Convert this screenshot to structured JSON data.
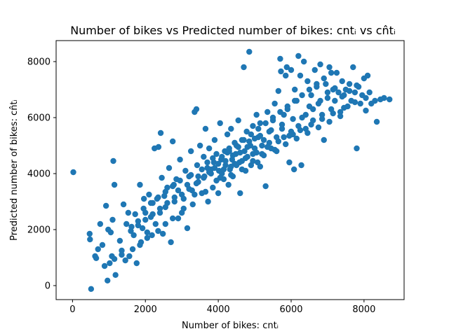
{
  "chart_data": {
    "type": "scatter",
    "title": "Number of bikes vs Predicted number of bikes: cntᵢ vs cn̂tᵢ",
    "xlabel": "Number of bikes: cntᵢ",
    "ylabel": "Predicted number of bikes: cn̂tᵢ",
    "xlim": [
      -450,
      9100
    ],
    "ylim": [
      -500,
      8750
    ],
    "xticks": [
      0,
      2000,
      4000,
      6000,
      8000
    ],
    "yticks": [
      0,
      2000,
      4000,
      6000,
      8000
    ],
    "xtick_labels": [
      "0",
      "2000",
      "4000",
      "6000",
      "8000"
    ],
    "ytick_labels": [
      "0",
      "2000",
      "4000",
      "6000",
      "8000"
    ],
    "grid": false,
    "marker_color": "#1f77b4",
    "series": [
      {
        "points": [
          [
            22,
            4050
          ],
          [
            510,
            -120
          ],
          [
            480,
            1650
          ],
          [
            470,
            1850
          ],
          [
            620,
            1050
          ],
          [
            650,
            980
          ],
          [
            700,
            1300
          ],
          [
            760,
            2200
          ],
          [
            820,
            1450
          ],
          [
            880,
            700
          ],
          [
            920,
            2850
          ],
          [
            980,
            2000
          ],
          [
            1020,
            800
          ],
          [
            1050,
            1900
          ],
          [
            1080,
            1050
          ],
          [
            1100,
            2350
          ],
          [
            1120,
            4450
          ],
          [
            1150,
            3600
          ],
          [
            1180,
            380
          ],
          [
            960,
            180
          ],
          [
            1300,
            1600
          ],
          [
            1350,
            1250
          ],
          [
            1400,
            2900
          ],
          [
            1450,
            900
          ],
          [
            1480,
            2200
          ],
          [
            1530,
            2600
          ],
          [
            1560,
            1050
          ],
          [
            1620,
            2100
          ],
          [
            1680,
            1800
          ],
          [
            1720,
            2550
          ],
          [
            1760,
            800
          ],
          [
            1800,
            2300
          ],
          [
            1850,
            3600
          ],
          [
            1880,
            1550
          ],
          [
            1920,
            2050
          ],
          [
            1960,
            3100
          ],
          [
            2000,
            2600
          ],
          [
            2050,
            1900
          ],
          [
            2100,
            3250
          ],
          [
            2150,
            2450
          ],
          [
            2180,
            1800
          ],
          [
            2200,
            2950
          ],
          [
            2250,
            4900
          ],
          [
            2280,
            2200
          ],
          [
            2320,
            3100
          ],
          [
            2360,
            4950
          ],
          [
            2400,
            2600
          ],
          [
            2420,
            5450
          ],
          [
            2450,
            3850
          ],
          [
            2480,
            1850
          ],
          [
            2520,
            3200
          ],
          [
            2550,
            2800
          ],
          [
            2600,
            3500
          ],
          [
            2650,
            4200
          ],
          [
            2700,
            1550
          ],
          [
            2750,
            5150
          ],
          [
            2780,
            3600
          ],
          [
            2800,
            3000
          ],
          [
            2850,
            3800
          ],
          [
            2900,
            2400
          ],
          [
            2950,
            4500
          ],
          [
            3000,
            2600
          ],
          [
            3050,
            3100
          ],
          [
            3100,
            4100
          ],
          [
            3150,
            2050
          ],
          [
            3200,
            3900
          ],
          [
            3250,
            4800
          ],
          [
            3280,
            3400
          ],
          [
            3300,
            2900
          ],
          [
            3350,
            6200
          ],
          [
            3400,
            6300
          ],
          [
            3420,
            4300
          ],
          [
            3450,
            3700
          ],
          [
            3500,
            5000
          ],
          [
            3550,
            3300
          ],
          [
            3600,
            4600
          ],
          [
            3620,
            3900
          ],
          [
            3650,
            5600
          ],
          [
            3700,
            4200
          ],
          [
            3720,
            3000
          ],
          [
            3750,
            4900
          ],
          [
            3800,
            4000
          ],
          [
            3850,
            3500
          ],
          [
            3880,
            4400
          ],
          [
            3900,
            5200
          ],
          [
            3950,
            4700
          ],
          [
            4000,
            3300
          ],
          [
            4020,
            4100
          ],
          [
            4050,
            5800
          ],
          [
            4080,
            4500
          ],
          [
            4100,
            4000
          ],
          [
            4150,
            3800
          ],
          [
            4180,
            4800
          ],
          [
            4200,
            4300
          ],
          [
            4250,
            5400
          ],
          [
            4280,
            3600
          ],
          [
            4300,
            4900
          ],
          [
            4320,
            4150
          ],
          [
            4350,
            5600
          ],
          [
            4380,
            4500
          ],
          [
            4400,
            3900
          ],
          [
            4450,
            5100
          ],
          [
            4480,
            4700
          ],
          [
            4500,
            4300
          ],
          [
            4550,
            5900
          ],
          [
            4580,
            4400
          ],
          [
            4600,
            3300
          ],
          [
            4650,
            5200
          ],
          [
            4700,
            7800
          ],
          [
            4720,
            4800
          ],
          [
            4750,
            4100
          ],
          [
            4780,
            5500
          ],
          [
            4800,
            4600
          ],
          [
            4850,
            8350
          ],
          [
            4880,
            5000
          ],
          [
            4900,
            4300
          ],
          [
            4950,
            5700
          ],
          [
            5000,
            4900
          ],
          [
            5050,
            6100
          ],
          [
            5080,
            4400
          ],
          [
            5100,
            5300
          ],
          [
            5150,
            5800
          ],
          [
            5200,
            4700
          ],
          [
            5250,
            5200
          ],
          [
            5300,
            3550
          ],
          [
            5350,
            6200
          ],
          [
            5400,
            5500
          ],
          [
            5450,
            4900
          ],
          [
            5500,
            5900
          ],
          [
            5550,
            6500
          ],
          [
            5600,
            5300
          ],
          [
            5650,
            6950
          ],
          [
            5700,
            8100
          ],
          [
            5720,
            7650
          ],
          [
            5750,
            5600
          ],
          [
            5800,
            6100
          ],
          [
            5850,
            7500
          ],
          [
            5880,
            7800
          ],
          [
            5900,
            6300
          ],
          [
            5950,
            4400
          ],
          [
            6000,
            7700
          ],
          [
            6050,
            5400
          ],
          [
            6080,
            4150
          ],
          [
            6100,
            7000
          ],
          [
            6150,
            6600
          ],
          [
            6200,
            8200
          ],
          [
            6250,
            7500
          ],
          [
            6280,
            4300
          ],
          [
            6300,
            6000
          ],
          [
            6350,
            8000
          ],
          [
            6400,
            5600
          ],
          [
            6450,
            7300
          ],
          [
            6500,
            6400
          ],
          [
            6550,
            6800
          ],
          [
            6600,
            5900
          ],
          [
            6650,
            7700
          ],
          [
            6700,
            7100
          ],
          [
            6750,
            6500
          ],
          [
            6800,
            7900
          ],
          [
            6850,
            6100
          ],
          [
            6900,
            5200
          ],
          [
            6950,
            7200
          ],
          [
            7000,
            6700
          ],
          [
            7050,
            7800
          ],
          [
            7100,
            6300
          ],
          [
            7150,
            7000
          ],
          [
            7200,
            6600
          ],
          [
            7250,
            7600
          ],
          [
            7300,
            6900
          ],
          [
            7350,
            6200
          ],
          [
            7400,
            7300
          ],
          [
            7450,
            6800
          ],
          [
            7500,
            7000
          ],
          [
            7550,
            6400
          ],
          [
            7600,
            7200
          ],
          [
            7650,
            6600
          ],
          [
            7700,
            7800
          ],
          [
            7750,
            6900
          ],
          [
            7800,
            4900
          ],
          [
            7850,
            7100
          ],
          [
            7900,
            6500
          ],
          [
            7950,
            6800
          ],
          [
            8000,
            7400
          ],
          [
            8050,
            6700
          ],
          [
            8100,
            7500
          ],
          [
            8150,
            6900
          ],
          [
            8200,
            6500
          ],
          [
            8300,
            6600
          ],
          [
            8350,
            5850
          ],
          [
            8450,
            6650
          ],
          [
            8550,
            6700
          ],
          [
            8700,
            6650
          ],
          [
            5150,
            4250
          ],
          [
            4950,
            4700
          ],
          [
            4650,
            4450
          ],
          [
            4350,
            3950
          ],
          [
            3950,
            3750
          ],
          [
            3650,
            3350
          ],
          [
            3350,
            3250
          ],
          [
            3050,
            2750
          ],
          [
            2750,
            2400
          ],
          [
            2550,
            2200
          ],
          [
            2350,
            1950
          ],
          [
            2050,
            1700
          ],
          [
            1850,
            1450
          ],
          [
            1650,
            1300
          ],
          [
            1350,
            1100
          ],
          [
            1150,
            950
          ],
          [
            5600,
            4800
          ],
          [
            5800,
            5300
          ],
          [
            6000,
            5500
          ],
          [
            6200,
            5700
          ],
          [
            6400,
            6100
          ],
          [
            6600,
            6300
          ],
          [
            6800,
            6600
          ],
          [
            7000,
            6900
          ],
          [
            7200,
            7050
          ],
          [
            7400,
            6750
          ],
          [
            7600,
            6950
          ],
          [
            7800,
            7150
          ],
          [
            5400,
            5100
          ],
          [
            5200,
            5000
          ],
          [
            5000,
            5250
          ],
          [
            4800,
            4950
          ],
          [
            4600,
            4750
          ],
          [
            4400,
            4650
          ],
          [
            4200,
            4450
          ],
          [
            4000,
            4350
          ],
          [
            3800,
            4150
          ],
          [
            3600,
            3850
          ],
          [
            3400,
            3650
          ],
          [
            3200,
            3450
          ],
          [
            3000,
            3250
          ],
          [
            2800,
            3150
          ],
          [
            2600,
            2950
          ],
          [
            2400,
            2750
          ],
          [
            2200,
            2550
          ],
          [
            2000,
            2350
          ],
          [
            1800,
            2150
          ],
          [
            1600,
            1950
          ],
          [
            4100,
            4600
          ],
          [
            4300,
            4800
          ],
          [
            4500,
            5000
          ],
          [
            4700,
            5200
          ],
          [
            4900,
            5400
          ],
          [
            5100,
            5600
          ],
          [
            5300,
            5800
          ],
          [
            5500,
            6000
          ],
          [
            5700,
            6200
          ],
          [
            5900,
            6400
          ],
          [
            6100,
            6600
          ],
          [
            6300,
            6800
          ],
          [
            6500,
            7000
          ],
          [
            6700,
            7200
          ],
          [
            6900,
            7400
          ],
          [
            7100,
            7600
          ],
          [
            3700,
            4400
          ],
          [
            3900,
            4200
          ],
          [
            4150,
            4150
          ],
          [
            4450,
            4350
          ],
          [
            4750,
            4550
          ],
          [
            5050,
            4750
          ],
          [
            5350,
            4950
          ],
          [
            5650,
            5150
          ],
          [
            5950,
            5350
          ],
          [
            6250,
            5550
          ],
          [
            6550,
            5750
          ],
          [
            6850,
            5950
          ],
          [
            7150,
            6150
          ],
          [
            7450,
            6350
          ],
          [
            7750,
            6550
          ],
          [
            8050,
            6250
          ],
          [
            2900,
            3400
          ],
          [
            3150,
            3600
          ],
          [
            3450,
            3900
          ],
          [
            3750,
            4050
          ],
          [
            4050,
            3850
          ],
          [
            4350,
            4250
          ],
          [
            4650,
            4150
          ],
          [
            4950,
            4450
          ],
          [
            5250,
            4650
          ],
          [
            5550,
            4850
          ],
          [
            5850,
            5050
          ],
          [
            6150,
            5250
          ],
          [
            6450,
            5450
          ],
          [
            6750,
            5650
          ],
          [
            7050,
            5850
          ],
          [
            7350,
            6050
          ],
          [
            1950,
            2750
          ],
          [
            2150,
            2950
          ],
          [
            2350,
            3150
          ],
          [
            2550,
            3350
          ],
          [
            2750,
            3550
          ],
          [
            2950,
            3750
          ],
          [
            3250,
            3950
          ],
          [
            3550,
            4150
          ],
          [
            3850,
            4550
          ],
          [
            4250,
            4750
          ],
          [
            4550,
            4950
          ],
          [
            4850,
            5150
          ],
          [
            5150,
            5350
          ],
          [
            5450,
            5550
          ],
          [
            5750,
            5750
          ],
          [
            6050,
            5950
          ]
        ]
      }
    ]
  }
}
